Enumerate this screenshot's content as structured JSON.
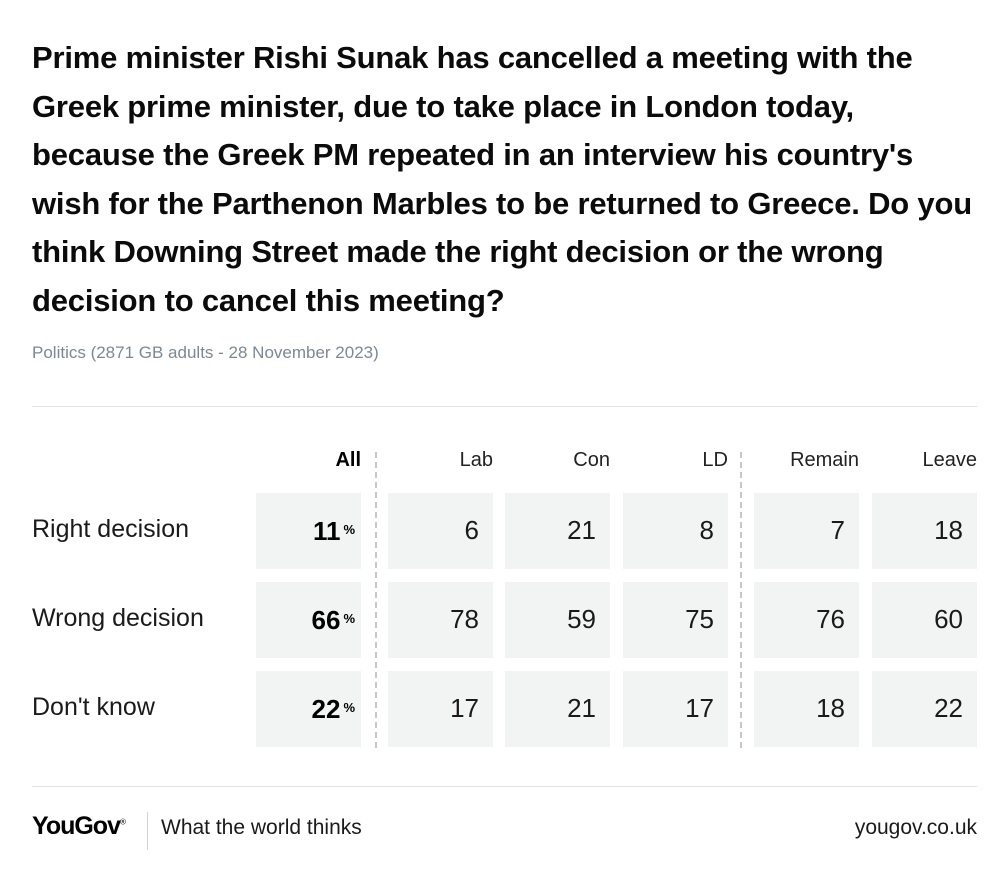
{
  "question": "Prime minister Rishi Sunak has cancelled a meeting with the Greek prime minister, due to take place in London today, because the Greek PM repeated in an interview his country's wish for the Parthenon Marbles to be returned to Greece. Do you think Downing Street made the right decision or the wrong decision to cancel this meeting?",
  "meta": "Politics (2871 GB adults - 28 November 2023)",
  "columns": [
    "All",
    "Lab",
    "Con",
    "LD",
    "Remain",
    "Leave"
  ],
  "percent_sign": "%",
  "rows": [
    {
      "label": "Right decision",
      "values": [
        "11",
        "6",
        "21",
        "8",
        "7",
        "18"
      ]
    },
    {
      "label": "Wrong decision",
      "values": [
        "66",
        "78",
        "59",
        "75",
        "76",
        "60"
      ]
    },
    {
      "label": "Don't know",
      "values": [
        "22",
        "17",
        "21",
        "17",
        "18",
        "22"
      ]
    }
  ],
  "footer": {
    "logo": "YouGov",
    "logo_mark": "®",
    "tagline": "What the world thinks",
    "url": "yougov.co.uk"
  },
  "colors": {
    "cell_background": "#f2f4f4",
    "meta_text": "#7c8894"
  },
  "chart_data": {
    "type": "table",
    "title": "Prime minister Rishi Sunak has cancelled a meeting with the Greek prime minister, due to take place in London today, because the Greek PM repeated in an interview his country's wish for the Parthenon Marbles to be returned to Greece. Do you think Downing Street made the right decision or the wrong decision to cancel this meeting?",
    "subtitle": "Politics (2871 GB adults - 28 November 2023)",
    "columns": [
      "All",
      "Lab",
      "Con",
      "LD",
      "Remain",
      "Leave"
    ],
    "rows": [
      "Right decision",
      "Wrong decision",
      "Don't know"
    ],
    "unit": "%",
    "values": [
      [
        11,
        6,
        21,
        8,
        7,
        18
      ],
      [
        66,
        78,
        59,
        75,
        76,
        60
      ],
      [
        22,
        17,
        21,
        17,
        18,
        22
      ]
    ]
  }
}
